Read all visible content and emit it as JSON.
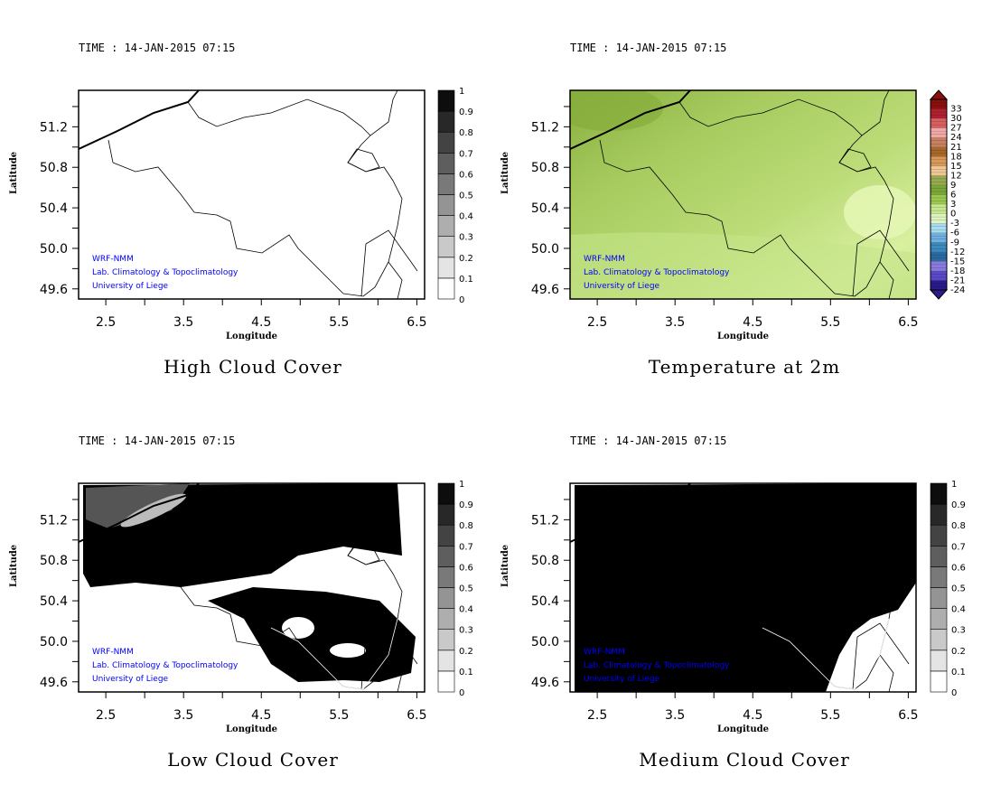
{
  "panels": [
    {
      "id": "high-cloud",
      "time": "TIME : 14-JAN-2015 07:15",
      "title": "High Cloud Cover",
      "field": "high",
      "colorbar": "cloud"
    },
    {
      "id": "temperature",
      "time": "TIME : 14-JAN-2015 07:15",
      "title": "Temperature at 2m",
      "field": "temp",
      "colorbar": "temp"
    },
    {
      "id": "low-cloud",
      "time": "TIME : 14-JAN-2015 07:15",
      "title": "Low Cloud Cover",
      "field": "low",
      "colorbar": "cloud"
    },
    {
      "id": "medium-cloud",
      "time": "TIME : 14-JAN-2015 07:15",
      "title": "Medium Cloud Cover",
      "field": "medium",
      "colorbar": "cloud"
    }
  ],
  "axes": {
    "xlabel": "Longitude",
    "ylabel": "Latitude",
    "xticks": [
      "2.5",
      "3.5",
      "4.5",
      "5.5",
      "6.5"
    ],
    "yticks": [
      "51.2",
      "50.8",
      "50.4",
      "50.0",
      "49.6"
    ],
    "xlim": [
      2.15,
      6.6
    ],
    "ylim": [
      49.5,
      51.56
    ]
  },
  "credits": [
    "WRF-NMM",
    "Lab. Climatology & Topoclimatology",
    "University of Liege"
  ],
  "cloud_colorbar": {
    "labels": [
      "0",
      "0.1",
      "0.2",
      "0.3",
      "0.4",
      "0.5",
      "0.6",
      "0.7",
      "0.8",
      "0.9",
      "1"
    ]
  },
  "temp_colorbar": {
    "labels": [
      "-24",
      "-21",
      "-18",
      "-15",
      "-12",
      "-9",
      "-6",
      "-3",
      "0",
      "3",
      "6",
      "9",
      "12",
      "15",
      "18",
      "21",
      "24",
      "27",
      "30",
      "33"
    ],
    "colors": [
      "#2a1a8a",
      "#5a4ac8",
      "#8a7ae0",
      "#2a6aa0",
      "#3a8ac0",
      "#70b0e0",
      "#a8dcf0",
      "#e0f4c0",
      "#c8e890",
      "#9cc850",
      "#7aa838",
      "#9aaa50",
      "#f0c898",
      "#d89858",
      "#a8682a",
      "#c88060",
      "#f0a8a8",
      "#d86060",
      "#b02030",
      "#8a1010"
    ]
  }
}
